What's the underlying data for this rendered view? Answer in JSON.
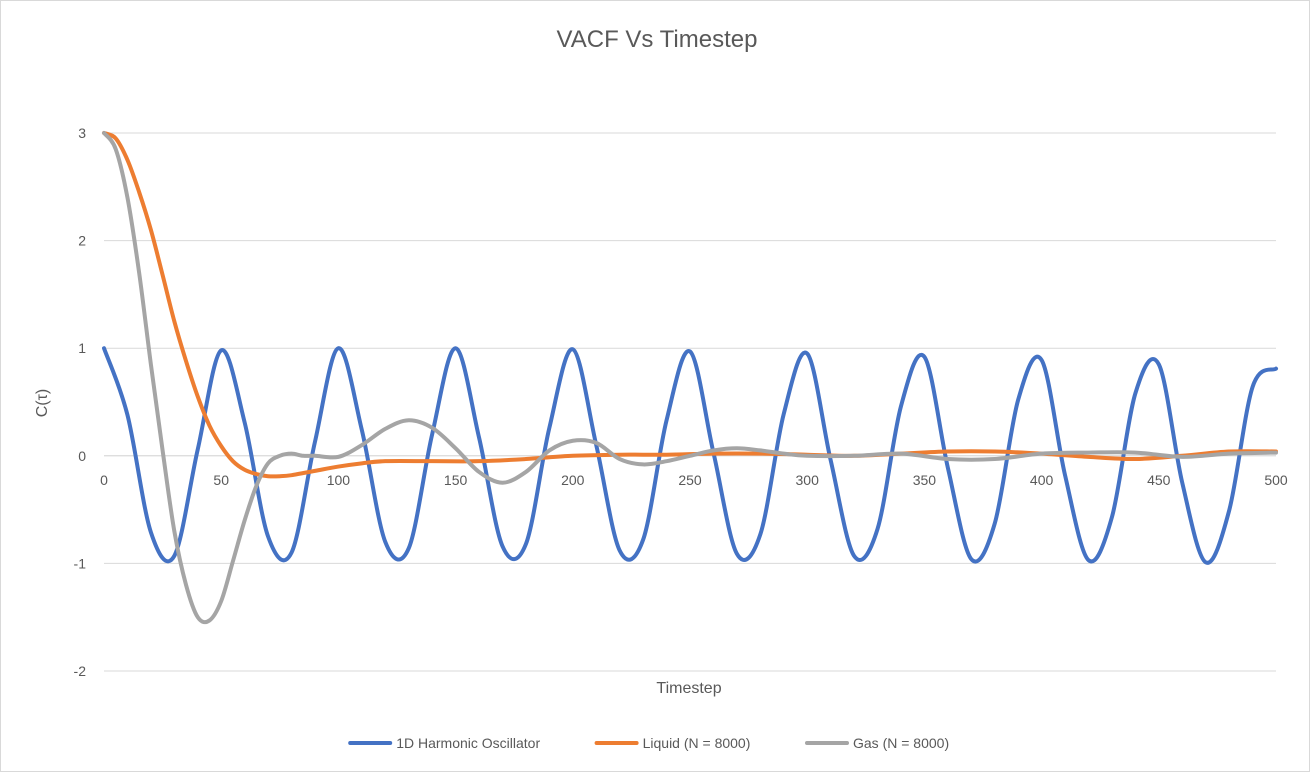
{
  "chart_data": {
    "type": "line",
    "title": "VACF Vs Timestep",
    "xlabel": "Timestep",
    "ylabel": "C(τ)",
    "xlim": [
      0,
      500
    ],
    "ylim": [
      -2,
      3
    ],
    "x_ticks": [
      0,
      50,
      100,
      150,
      200,
      250,
      300,
      350,
      400,
      450,
      500
    ],
    "x_tick_labels": [
      "0",
      "50",
      "100",
      "150",
      "200",
      "250",
      "300",
      "350",
      "400",
      "450",
      "500"
    ],
    "y_ticks": [
      3,
      2,
      1,
      0,
      -1,
      -2
    ],
    "y_tick_labels": [
      "3",
      "2",
      "1",
      "0",
      "-1",
      "-2"
    ],
    "grid": "horizontal",
    "legend_position": "bottom",
    "series": [
      {
        "name": "1D Harmonic Oscillator",
        "color": "#4472C4",
        "x": [
          0,
          10,
          20,
          30,
          40,
          50,
          60,
          70,
          80,
          90,
          100,
          110,
          120,
          130,
          140,
          150,
          160,
          170,
          180,
          190,
          200,
          210,
          220,
          230,
          240,
          250,
          260,
          270,
          280,
          290,
          300,
          310,
          320,
          330,
          340,
          350,
          360,
          370,
          380,
          390,
          400,
          410,
          420,
          430,
          440,
          450,
          460,
          470,
          480,
          490,
          500
        ],
        "values": [
          1.0,
          0.38,
          -0.71,
          -0.93,
          0.06,
          0.98,
          0.31,
          -0.75,
          -0.9,
          0.13,
          1.0,
          0.24,
          -0.8,
          -0.86,
          0.2,
          1.0,
          0.17,
          -0.84,
          -0.82,
          0.26,
          0.99,
          0.1,
          -0.88,
          -0.78,
          0.33,
          0.97,
          0.03,
          -0.91,
          -0.73,
          0.39,
          0.95,
          -0.04,
          -0.93,
          -0.68,
          0.46,
          0.92,
          -0.11,
          -0.96,
          -0.63,
          0.52,
          0.89,
          -0.18,
          -0.97,
          -0.57,
          0.58,
          0.85,
          -0.25,
          -0.99,
          -0.51,
          0.64,
          0.81
        ]
      },
      {
        "name": "Liquid (N = 8000)",
        "color": "#ED7D31",
        "x": [
          0,
          5,
          10,
          15,
          20,
          25,
          30,
          35,
          40,
          45,
          50,
          55,
          60,
          65,
          70,
          75,
          80,
          90,
          100,
          110,
          120,
          140,
          160,
          180,
          200,
          220,
          240,
          260,
          280,
          300,
          320,
          340,
          360,
          380,
          400,
          420,
          440,
          460,
          480,
          500
        ],
        "values": [
          3.0,
          2.95,
          2.75,
          2.45,
          2.1,
          1.68,
          1.25,
          0.88,
          0.55,
          0.28,
          0.09,
          -0.05,
          -0.13,
          -0.17,
          -0.19,
          -0.19,
          -0.18,
          -0.14,
          -0.1,
          -0.07,
          -0.05,
          -0.05,
          -0.05,
          -0.03,
          0.0,
          0.01,
          0.01,
          0.02,
          0.02,
          0.01,
          0.0,
          0.02,
          0.04,
          0.04,
          0.02,
          -0.01,
          -0.03,
          0.0,
          0.04,
          0.04
        ]
      },
      {
        "name": "Gas (N = 8000)",
        "color": "#A5A5A5",
        "x": [
          0,
          5,
          10,
          15,
          20,
          25,
          30,
          35,
          40,
          45,
          50,
          55,
          60,
          65,
          70,
          75,
          80,
          85,
          90,
          100,
          110,
          120,
          130,
          140,
          150,
          160,
          170,
          180,
          190,
          200,
          210,
          220,
          230,
          240,
          250,
          260,
          270,
          280,
          290,
          300,
          320,
          340,
          360,
          380,
          400,
          420,
          440,
          460,
          480,
          500
        ],
        "values": [
          3.0,
          2.85,
          2.4,
          1.7,
          0.85,
          0.05,
          -0.7,
          -1.2,
          -1.5,
          -1.53,
          -1.35,
          -0.98,
          -0.6,
          -0.28,
          -0.07,
          0.0,
          0.02,
          0.0,
          0.0,
          -0.01,
          0.1,
          0.25,
          0.33,
          0.26,
          0.07,
          -0.15,
          -0.25,
          -0.15,
          0.05,
          0.14,
          0.12,
          -0.03,
          -0.08,
          -0.05,
          0.0,
          0.05,
          0.07,
          0.05,
          0.02,
          0.0,
          0.0,
          0.02,
          -0.03,
          -0.03,
          0.02,
          0.03,
          0.03,
          -0.01,
          0.02,
          0.03
        ]
      }
    ]
  }
}
